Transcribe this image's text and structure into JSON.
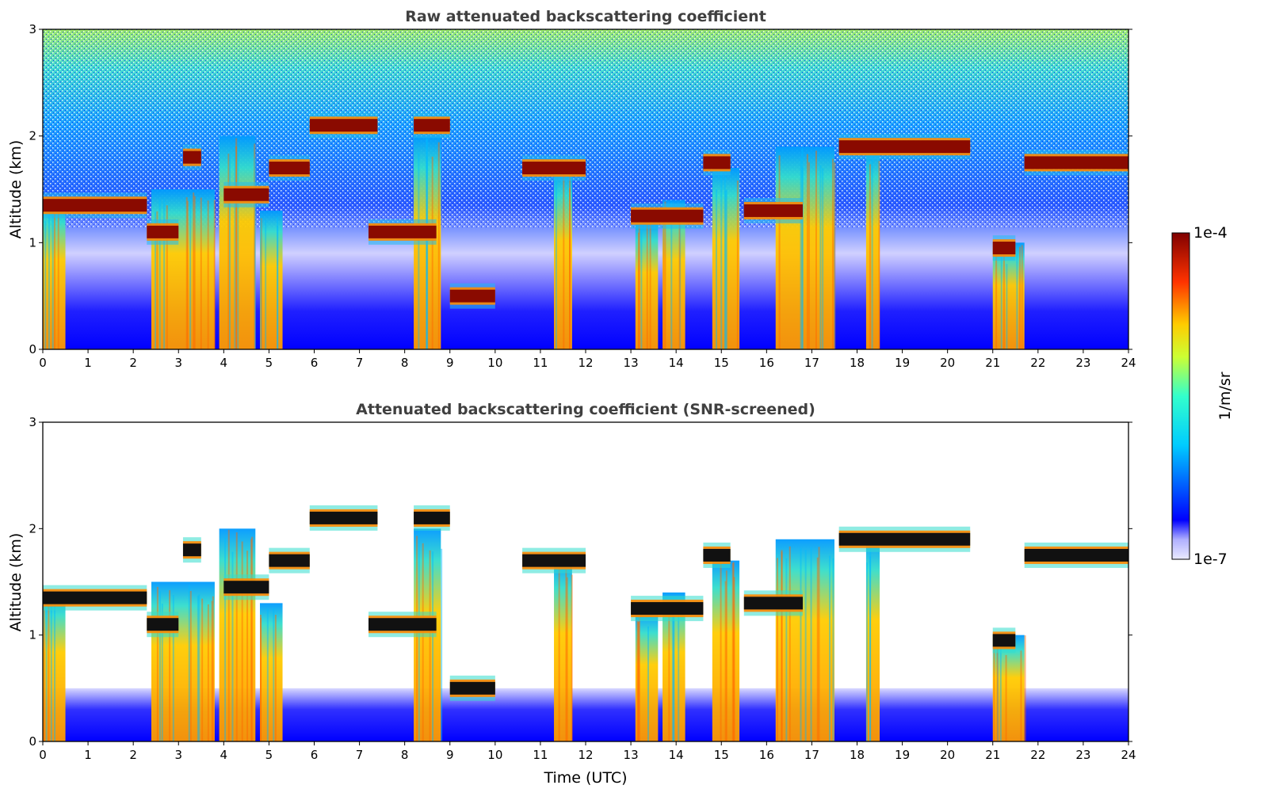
{
  "chart_data": [
    {
      "type": "heatmap",
      "title": "Raw attenuated backscattering coefficient",
      "xlabel": "",
      "ylabel": "Altitude (km)",
      "xlim": [
        0,
        24
      ],
      "ylim": [
        0,
        3
      ],
      "xticks": [
        "0",
        "1",
        "2",
        "3",
        "4",
        "5",
        "6",
        "7",
        "8",
        "9",
        "10",
        "11",
        "12",
        "13",
        "14",
        "15",
        "16",
        "17",
        "18",
        "19",
        "20",
        "21",
        "22",
        "23",
        "24"
      ],
      "yticks": [
        "0",
        "1",
        "2",
        "3"
      ],
      "screened": false
    },
    {
      "type": "heatmap",
      "title": "Attenuated backscattering coefficient (SNR-screened)",
      "xlabel": "Time (UTC)",
      "ylabel": "Altitude (km)",
      "xlim": [
        0,
        24
      ],
      "ylim": [
        0,
        3
      ],
      "xticks": [
        "0",
        "1",
        "2",
        "3",
        "4",
        "5",
        "6",
        "7",
        "8",
        "9",
        "10",
        "11",
        "12",
        "13",
        "14",
        "15",
        "16",
        "17",
        "18",
        "19",
        "20",
        "21",
        "22",
        "23",
        "24"
      ],
      "yticks": [
        "0",
        "1",
        "2",
        "3"
      ],
      "screened": true
    }
  ],
  "colorbar": {
    "label": "1/m/sr",
    "max_label": "1e-4",
    "min_label": "1e-7",
    "colormap": "jet",
    "scale": "log"
  },
  "cloud_layers": [
    {
      "t0": 0.0,
      "t1": 2.3,
      "z": 1.35
    },
    {
      "t0": 2.3,
      "t1": 3.0,
      "z": 1.1
    },
    {
      "t0": 3.1,
      "t1": 3.5,
      "z": 1.8
    },
    {
      "t0": 4.0,
      "t1": 5.0,
      "z": 1.45
    },
    {
      "t0": 5.0,
      "t1": 5.9,
      "z": 1.7
    },
    {
      "t0": 5.9,
      "t1": 7.4,
      "z": 2.1
    },
    {
      "t0": 8.2,
      "t1": 9.0,
      "z": 2.1
    },
    {
      "t0": 7.2,
      "t1": 8.7,
      "z": 1.1
    },
    {
      "t0": 9.0,
      "t1": 10.0,
      "z": 0.5
    },
    {
      "t0": 10.6,
      "t1": 12.0,
      "z": 1.7
    },
    {
      "t0": 13.0,
      "t1": 14.6,
      "z": 1.25
    },
    {
      "t0": 14.6,
      "t1": 15.2,
      "z": 1.75
    },
    {
      "t0": 15.5,
      "t1": 16.8,
      "z": 1.3
    },
    {
      "t0": 17.6,
      "t1": 20.5,
      "z": 1.9
    },
    {
      "t0": 21.0,
      "t1": 21.5,
      "z": 0.95
    },
    {
      "t0": 21.7,
      "t1": 24.0,
      "z": 1.75
    }
  ],
  "precip_columns": [
    {
      "t0": 0.0,
      "t1": 0.5,
      "ztop": 1.4
    },
    {
      "t0": 2.4,
      "t1": 3.8,
      "ztop": 1.5
    },
    {
      "t0": 3.9,
      "t1": 4.7,
      "ztop": 2.0
    },
    {
      "t0": 4.8,
      "t1": 5.3,
      "ztop": 1.3
    },
    {
      "t0": 8.2,
      "t1": 8.8,
      "ztop": 2.0
    },
    {
      "t0": 11.3,
      "t1": 11.7,
      "ztop": 1.7
    },
    {
      "t0": 13.1,
      "t1": 13.6,
      "ztop": 1.2
    },
    {
      "t0": 13.7,
      "t1": 14.2,
      "ztop": 1.4
    },
    {
      "t0": 14.8,
      "t1": 15.4,
      "ztop": 1.7
    },
    {
      "t0": 16.2,
      "t1": 17.5,
      "ztop": 1.9
    },
    {
      "t0": 18.2,
      "t1": 18.5,
      "ztop": 1.9
    },
    {
      "t0": 21.0,
      "t1": 21.7,
      "ztop": 1.0
    }
  ]
}
